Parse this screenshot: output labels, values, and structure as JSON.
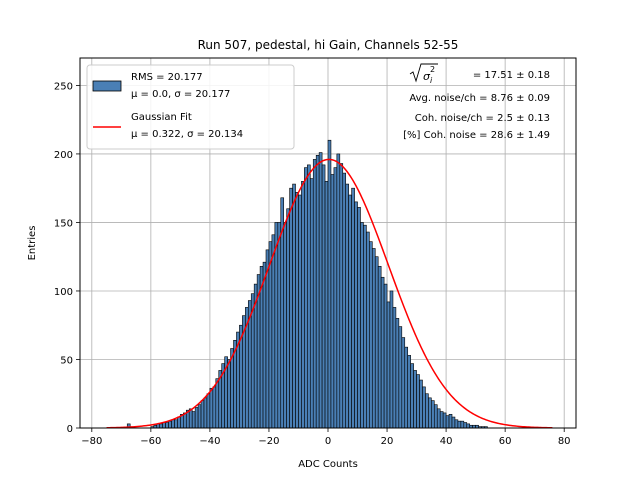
{
  "chart_data": {
    "type": "bar",
    "title": "Run 507, pedestal, hi Gain, Channels 52-55",
    "xlabel": "ADC Counts",
    "ylabel": "Entries",
    "xlim": [
      -84,
      84
    ],
    "ylim": [
      0,
      270
    ],
    "x_ticks": [
      -80,
      -60,
      -40,
      -20,
      0,
      20,
      40,
      60,
      80
    ],
    "x_tick_labels": [
      "−80",
      "−60",
      "−40",
      "−20",
      "0",
      "20",
      "40",
      "60",
      "80"
    ],
    "y_ticks": [
      0,
      50,
      100,
      150,
      200,
      250
    ],
    "y_tick_labels": [
      "0",
      "50",
      "100",
      "150",
      "200",
      "250"
    ],
    "grid": true,
    "legend_position": "top-left",
    "colors": {
      "bar_fill": "#4a7fb5",
      "bar_edge": "#000000",
      "fit_line": "#ff0000",
      "grid": "#b0b0b0"
    },
    "legend": [
      {
        "type": "patch",
        "line1": "RMS = 20.177",
        "line2": "μ = 0.0, σ = 20.177"
      },
      {
        "type": "line",
        "line1": "Gaussian Fit",
        "line2": "μ = 0.322, σ = 20.134"
      }
    ],
    "annotations": {
      "sigma_value": "= 17.51 ± 0.18",
      "lines": [
        "Avg. noise/ch = 8.76 ± 0.09",
        "Coh. noise/ch = 2.5 ± 0.13",
        "[%] Coh. noise = 28.6 ± 1.49"
      ]
    },
    "histogram": {
      "bin_edges_start": -75,
      "bin_width": 1,
      "counts": [
        0,
        0,
        0,
        0,
        0,
        0,
        0,
        3,
        0,
        0,
        0,
        0,
        0,
        0,
        0,
        1,
        2,
        3,
        3,
        4,
        4,
        5,
        6,
        6,
        8,
        10,
        11,
        13,
        14,
        12,
        15,
        17,
        20,
        22,
        25,
        29,
        30,
        36,
        42,
        47,
        52,
        50,
        58,
        64,
        70,
        75,
        82,
        88,
        93,
        98,
        105,
        112,
        118,
        121,
        130,
        136,
        141,
        150,
        150,
        168,
        150,
        160,
        175,
        178,
        172,
        170,
        180,
        190,
        192,
        182,
        196,
        199,
        201,
        192,
        180,
        210,
        185,
        190,
        200,
        193,
        186,
        178,
        170,
        175,
        165,
        161,
        150,
        148,
        143,
        136,
        131,
        125,
        118,
        110,
        105,
        92,
        100,
        88,
        80,
        74,
        66,
        59,
        53,
        47,
        42,
        39,
        35,
        30,
        25,
        22,
        20,
        17,
        14,
        12,
        11,
        9,
        10,
        8,
        6,
        5,
        5,
        4,
        3,
        2,
        2,
        2,
        1,
        1,
        1,
        0,
        0,
        0,
        0,
        0,
        0,
        0,
        0,
        0,
        0,
        0,
        0,
        0,
        0,
        0,
        0,
        0,
        0,
        0
      ]
    },
    "series": [
      {
        "name": "Gaussian Fit",
        "type": "line",
        "mu": 0.322,
        "sigma": 20.134,
        "amplitude": 196,
        "x_range": [
          -75,
          76
        ]
      }
    ]
  }
}
